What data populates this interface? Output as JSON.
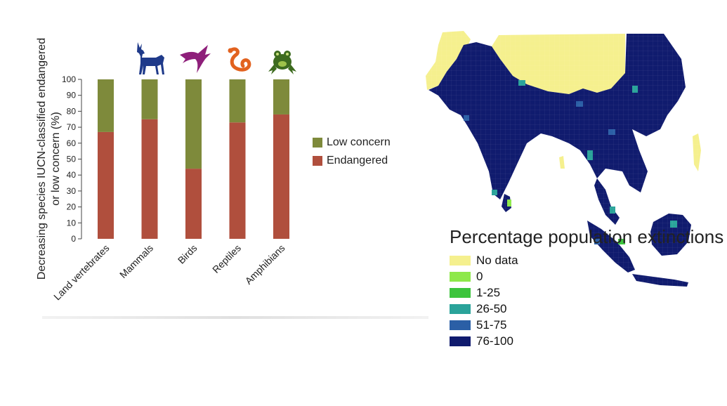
{
  "chart_data": {
    "type": "bar",
    "stacked": true,
    "ylabel": "Decreasing species IUCN-classified endangered or low concern (%)",
    "ylim": [
      0,
      100
    ],
    "yticks": [
      0,
      10,
      20,
      30,
      40,
      50,
      60,
      70,
      80,
      90,
      100
    ],
    "categories": [
      "Land vertebrates",
      "Mammals",
      "Birds",
      "Reptiles",
      "Amphibians"
    ],
    "series": [
      {
        "name": "Endangered",
        "color": "#b04f3d",
        "values": [
          67,
          75,
          44,
          73,
          78
        ]
      },
      {
        "name": "Low concern",
        "color": "#7e8a3b",
        "values": [
          33,
          25,
          56,
          27,
          22
        ]
      }
    ],
    "legend_position": "right",
    "icons": [
      {
        "name": "deer-icon",
        "color": "#1f3a8a"
      },
      {
        "name": "bird-icon",
        "color": "#8e1f7a"
      },
      {
        "name": "snake-icon",
        "color": "#e2621f"
      },
      {
        "name": "frog-icon",
        "color": "#3d6b1f"
      }
    ]
  },
  "map": {
    "title": "Percentage population extinctions",
    "legend": [
      {
        "label": "No data",
        "color": "#f5f08e"
      },
      {
        "label": "0",
        "color": "#8ee84a"
      },
      {
        "label": "1-25",
        "color": "#3cc43c"
      },
      {
        "label": "26-50",
        "color": "#2aa39a"
      },
      {
        "label": "51-75",
        "color": "#2b5fa6"
      },
      {
        "label": "76-100",
        "color": "#101b6e"
      }
    ]
  }
}
